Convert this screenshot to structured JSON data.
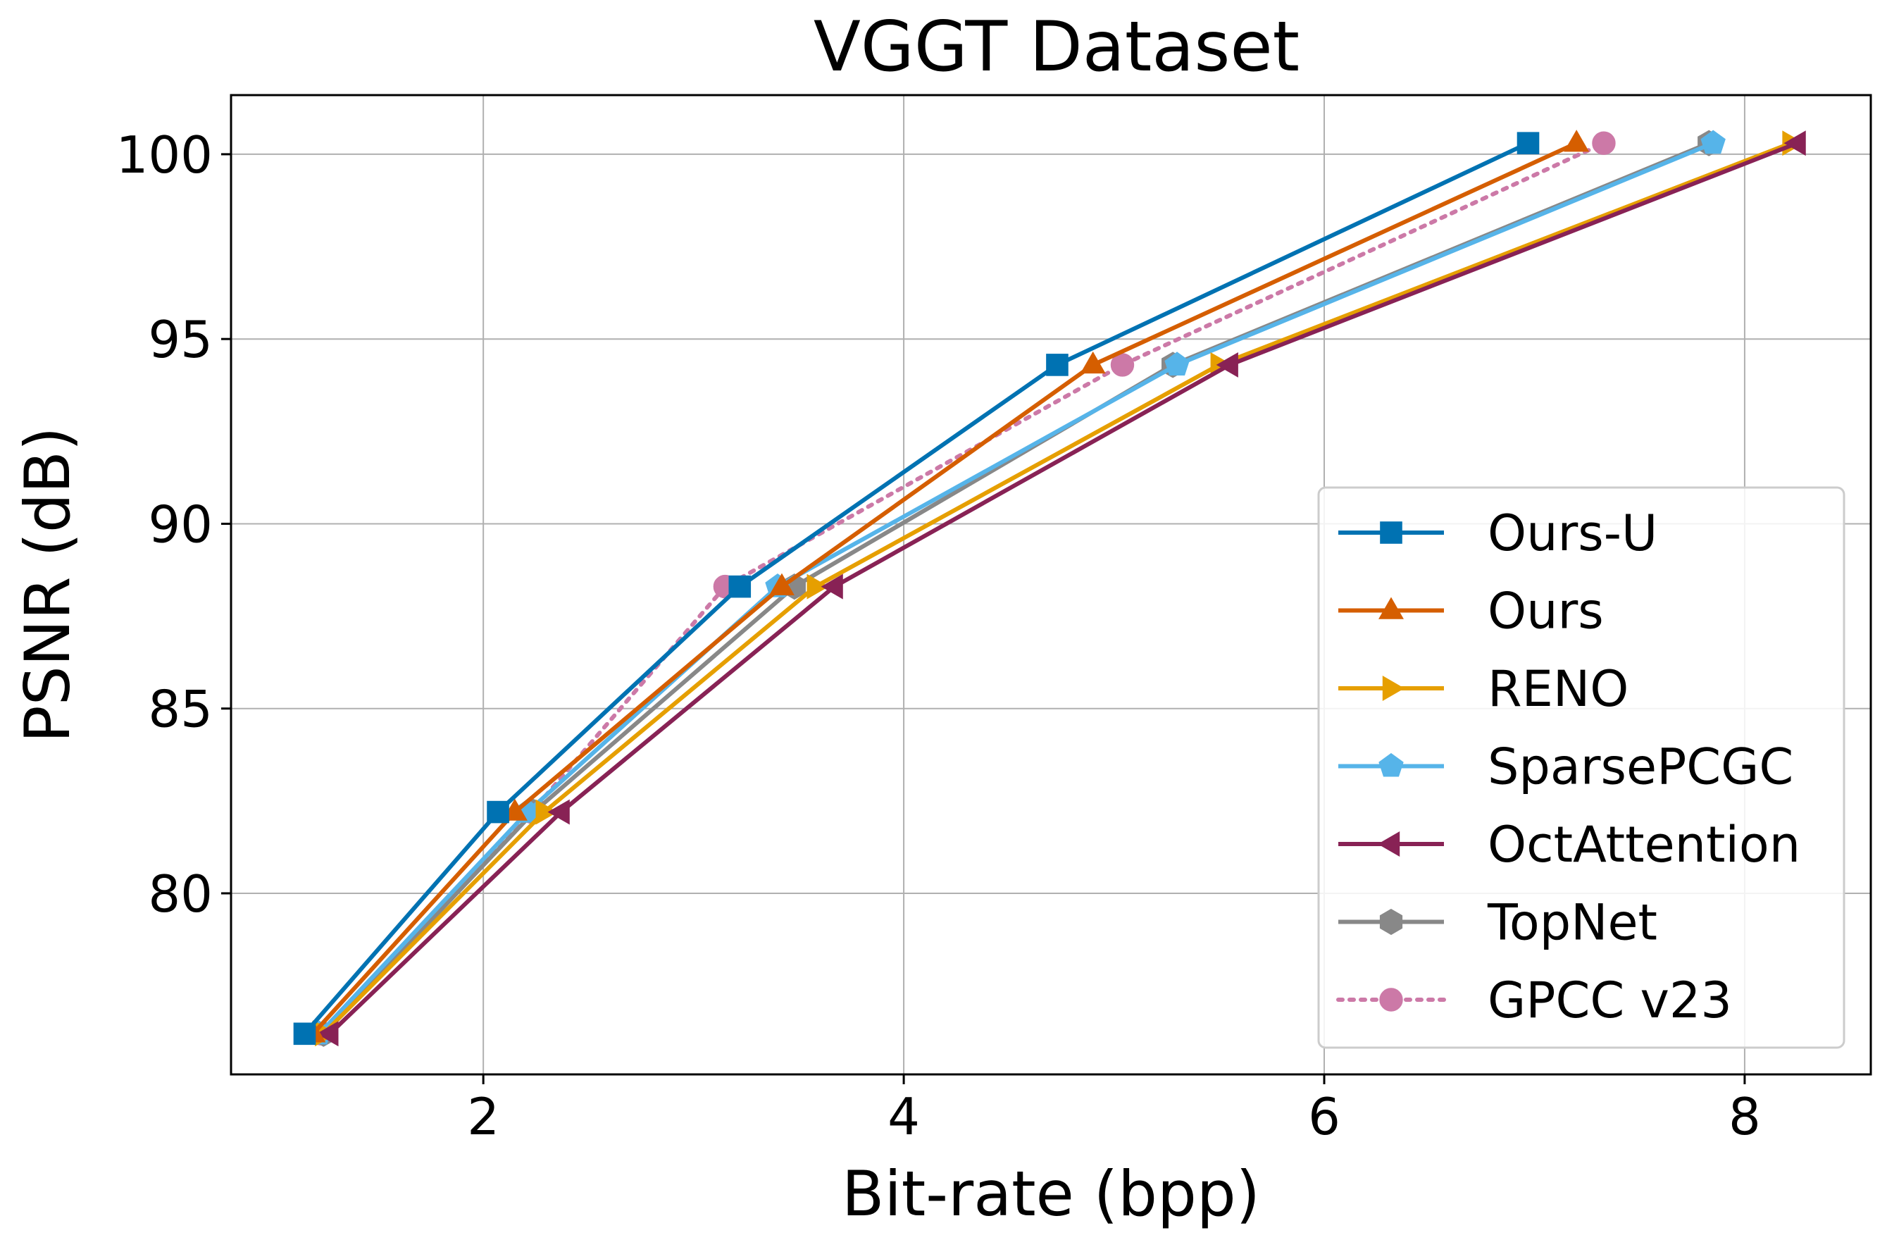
{
  "chart_data": {
    "type": "line",
    "title": "VGGT Dataset",
    "xlabel": "Bit-rate (bpp)",
    "ylabel": "PSNR (dB)",
    "xlim": [
      0.8,
      8.6
    ],
    "ylim": [
      75.1,
      101.6
    ],
    "xticks": [
      2,
      4,
      6,
      8
    ],
    "yticks": [
      80,
      85,
      90,
      95,
      100
    ],
    "grid": true,
    "legend_position": "lower-right",
    "series": [
      {
        "name": "Ours-U",
        "color": "#0072b2",
        "marker": "square",
        "dash": "solid",
        "x": [
          1.15,
          2.07,
          3.22,
          4.73,
          6.97
        ],
        "y": [
          76.2,
          82.2,
          88.3,
          94.3,
          100.3
        ]
      },
      {
        "name": "Ours",
        "color": "#d55e00",
        "marker": "triangle-up",
        "dash": "solid",
        "x": [
          1.19,
          2.15,
          3.42,
          4.9,
          7.2
        ],
        "y": [
          76.2,
          82.2,
          88.3,
          94.3,
          100.3
        ]
      },
      {
        "name": "RENO",
        "color": "#e69f00",
        "marker": "triangle-right",
        "dash": "solid",
        "x": [
          1.24,
          2.29,
          3.58,
          5.5,
          8.22
        ],
        "y": [
          76.2,
          82.2,
          88.3,
          94.3,
          100.3
        ]
      },
      {
        "name": "SparsePCGC",
        "color": "#56b4e9",
        "marker": "pentagon",
        "dash": "solid",
        "x": [
          1.22,
          2.21,
          3.4,
          5.3,
          7.85
        ],
        "y": [
          76.2,
          82.2,
          88.3,
          94.3,
          100.3
        ]
      },
      {
        "name": "OctAttention",
        "color": "#882255",
        "marker": "triangle-left",
        "dash": "solid",
        "x": [
          1.27,
          2.37,
          3.67,
          5.55,
          8.25
        ],
        "y": [
          76.2,
          82.2,
          88.3,
          94.3,
          100.3
        ]
      },
      {
        "name": "TopNet",
        "color": "#888888",
        "marker": "hexagon",
        "dash": "solid",
        "x": [
          1.24,
          2.24,
          3.48,
          5.28,
          7.83
        ],
        "y": [
          76.2,
          82.2,
          88.3,
          94.3,
          100.3
        ]
      },
      {
        "name": "GPCC v23",
        "color": "#cc79a7",
        "marker": "circle",
        "dash": "dotted",
        "x": [
          1.23,
          2.23,
          3.15,
          5.04,
          7.33
        ],
        "y": [
          76.2,
          82.2,
          88.3,
          94.3,
          100.3
        ]
      }
    ]
  }
}
